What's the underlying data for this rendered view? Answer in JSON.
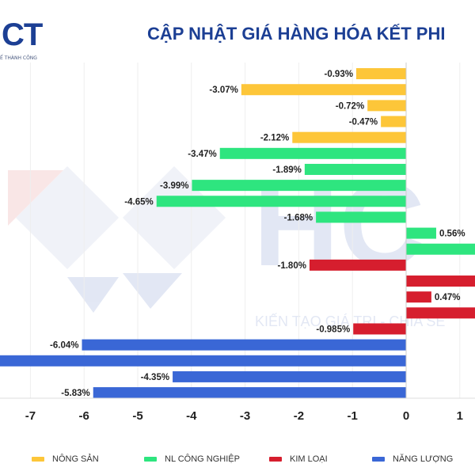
{
  "logo": {
    "letters": "CT",
    "tagline": "Ế THÀNH CÔNG"
  },
  "title": "CẬP NHẬT GIÁ HÀNG HÓA KẾT PHI",
  "watermark": {
    "letters": "HC",
    "slogan": "KIẾN TẠO GIÁ TRỊ - CHIA SẺ"
  },
  "colors": {
    "nong_san": "#fdc639",
    "nl_cong_nghiep": "#2ee57f",
    "kim_loai": "#d61e2e",
    "nang_luong": "#3a67d6",
    "title": "#1c3f94"
  },
  "chart_data": {
    "type": "bar",
    "orientation": "horizontal",
    "xlim": [
      -7.5,
      1.3
    ],
    "ticks": [
      "-7",
      "-6",
      "-5",
      "-4",
      "-3",
      "-2",
      "-1",
      "0",
      "1"
    ],
    "legend": [
      {
        "name": "NÔNG SẢN",
        "color": "#fdc639"
      },
      {
        "name": "NL CÔNG NGHIỆP",
        "color": "#2ee57f"
      },
      {
        "name": "KIM LOẠI",
        "color": "#d61e2e"
      },
      {
        "name": "NĂNG LƯỢNG",
        "color": "#3a67d6"
      }
    ],
    "bars": [
      {
        "value": -0.93,
        "label": "-0.93%",
        "group": 0
      },
      {
        "value": -3.07,
        "label": "-3.07%",
        "group": 0
      },
      {
        "value": -0.72,
        "label": "-0.72%",
        "group": 0
      },
      {
        "value": -0.47,
        "label": "-0.47%",
        "group": 0
      },
      {
        "value": -2.12,
        "label": "-2.12%",
        "group": 0
      },
      {
        "value": -3.47,
        "label": "-3.47%",
        "group": 1
      },
      {
        "value": -1.89,
        "label": "-1.89%",
        "group": 1
      },
      {
        "value": -3.99,
        "label": "-3.99%",
        "group": 1
      },
      {
        "value": -4.65,
        "label": "-4.65%",
        "group": 1
      },
      {
        "value": -1.68,
        "label": "-1.68%",
        "group": 1
      },
      {
        "value": 0.56,
        "label": "0.56%",
        "group": 1
      },
      {
        "value": 1.5,
        "label": "",
        "group": 1
      },
      {
        "value": -1.8,
        "label": "-1.80%",
        "group": 2
      },
      {
        "value": 1.5,
        "label": "",
        "group": 2
      },
      {
        "value": 0.47,
        "label": "0.47%",
        "group": 2
      },
      {
        "value": 1.5,
        "label": "",
        "group": 2
      },
      {
        "value": -0.985,
        "label": "-0.985%",
        "group": 2
      },
      {
        "value": -6.04,
        "label": "-6.04%",
        "group": 3
      },
      {
        "value": -7.6,
        "label": "",
        "group": 3
      },
      {
        "value": -4.35,
        "label": "-4.35%",
        "group": 3
      },
      {
        "value": -5.83,
        "label": "-5.83%",
        "group": 3
      }
    ]
  }
}
